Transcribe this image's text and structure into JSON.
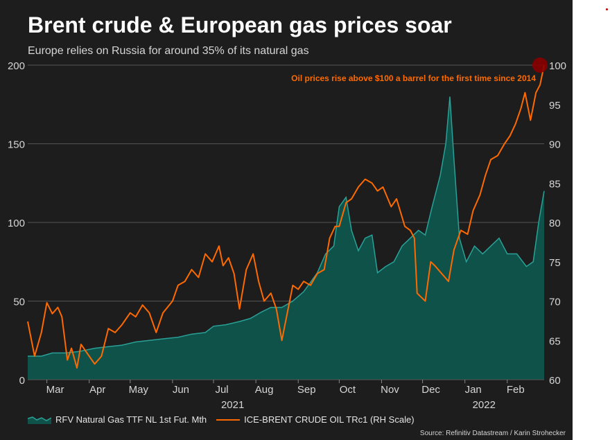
{
  "header": {
    "title": "Brent crude & European gas prices soar",
    "subtitle": "Europe relies on Russia for around 35% of its natural gas"
  },
  "legend": {
    "gas_label": "RFV Natural Gas TTF NL 1st Fut. Mth",
    "oil_label": "ICE-BRENT CRUDE OIL TRc1 (RH Scale)"
  },
  "source": "Source: Refinitiv Datastream / Karin Strohecker",
  "colors": {
    "background": "#1d1d1d",
    "gas_fill": "#0e5249",
    "gas_line": "#2aa198",
    "oil_line": "#ff6a00",
    "annotation": "#ff6a00",
    "marker": "#8b0000",
    "grid": "#555555",
    "text": "#d6d6d6"
  },
  "chart_data": {
    "type": "area",
    "annotation": "Oil prices rise above $100 a barrel for the first time since 2014",
    "left_axis": {
      "ylim": [
        0,
        200
      ],
      "ticks": [
        0,
        50,
        100,
        150,
        200
      ]
    },
    "right_axis": {
      "ylim": [
        60,
        100
      ],
      "ticks": [
        60,
        65,
        70,
        75,
        80,
        85,
        90,
        95,
        100
      ]
    },
    "x_range": [
      "2021-02-15",
      "2022-02-28"
    ],
    "grid": "horizontal",
    "legend_position": "bottom",
    "month_ticks": [
      {
        "date": "2021-03-01",
        "label": "Mar"
      },
      {
        "date": "2021-04-01",
        "label": "Apr"
      },
      {
        "date": "2021-05-01",
        "label": "May"
      },
      {
        "date": "2021-06-01",
        "label": "Jun"
      },
      {
        "date": "2021-07-01",
        "label": "Jul"
      },
      {
        "date": "2021-08-01",
        "label": "Aug"
      },
      {
        "date": "2021-09-01",
        "label": "Sep"
      },
      {
        "date": "2021-10-01",
        "label": "Oct"
      },
      {
        "date": "2021-11-01",
        "label": "Nov"
      },
      {
        "date": "2021-12-01",
        "label": "Dec"
      },
      {
        "date": "2022-01-01",
        "label": "Jan"
      },
      {
        "date": "2022-02-01",
        "label": "Feb"
      }
    ],
    "year_labels": [
      {
        "date": "2021-07-15",
        "label": "2021"
      },
      {
        "date": "2022-01-15",
        "label": "2022"
      }
    ],
    "marker_point": {
      "date": "2022-02-28",
      "value": 100
    },
    "series": [
      {
        "name": "RFV Natural Gas TTF NL 1st Fut. Mth",
        "axis": "left",
        "points": [
          [
            "2021-02-15",
            15
          ],
          [
            "2021-02-25",
            15
          ],
          [
            "2021-03-05",
            17
          ],
          [
            "2021-03-15",
            17
          ],
          [
            "2021-03-25",
            18
          ],
          [
            "2021-04-05",
            20
          ],
          [
            "2021-04-15",
            21
          ],
          [
            "2021-04-25",
            22
          ],
          [
            "2021-05-05",
            24
          ],
          [
            "2021-05-15",
            25
          ],
          [
            "2021-05-25",
            26
          ],
          [
            "2021-06-05",
            27
          ],
          [
            "2021-06-15",
            29
          ],
          [
            "2021-06-25",
            30
          ],
          [
            "2021-07-01",
            34
          ],
          [
            "2021-07-10",
            35
          ],
          [
            "2021-07-20",
            37
          ],
          [
            "2021-07-28",
            39
          ],
          [
            "2021-08-05",
            43
          ],
          [
            "2021-08-12",
            46
          ],
          [
            "2021-08-20",
            46
          ],
          [
            "2021-08-28",
            50
          ],
          [
            "2021-09-05",
            56
          ],
          [
            "2021-09-10",
            62
          ],
          [
            "2021-09-15",
            68
          ],
          [
            "2021-09-21",
            80
          ],
          [
            "2021-09-27",
            85
          ],
          [
            "2021-10-01",
            110
          ],
          [
            "2021-10-06",
            116
          ],
          [
            "2021-10-10",
            95
          ],
          [
            "2021-10-15",
            82
          ],
          [
            "2021-10-20",
            90
          ],
          [
            "2021-10-25",
            92
          ],
          [
            "2021-10-29",
            68
          ],
          [
            "2021-11-04",
            72
          ],
          [
            "2021-11-10",
            75
          ],
          [
            "2021-11-16",
            85
          ],
          [
            "2021-11-22",
            90
          ],
          [
            "2021-11-28",
            95
          ],
          [
            "2021-12-03",
            92
          ],
          [
            "2021-12-08",
            110
          ],
          [
            "2021-12-14",
            130
          ],
          [
            "2021-12-18",
            150
          ],
          [
            "2021-12-21",
            180
          ],
          [
            "2021-12-24",
            140
          ],
          [
            "2021-12-28",
            90
          ],
          [
            "2022-01-02",
            75
          ],
          [
            "2022-01-08",
            85
          ],
          [
            "2022-01-14",
            80
          ],
          [
            "2022-01-20",
            85
          ],
          [
            "2022-01-26",
            90
          ],
          [
            "2022-02-01",
            80
          ],
          [
            "2022-02-08",
            80
          ],
          [
            "2022-02-15",
            72
          ],
          [
            "2022-02-20",
            75
          ],
          [
            "2022-02-24",
            100
          ],
          [
            "2022-02-28",
            120
          ]
        ]
      },
      {
        "name": "ICE-BRENT CRUDE OIL TRc1 (RH Scale)",
        "axis": "right",
        "points": [
          [
            "2021-02-15",
            67.4
          ],
          [
            "2021-02-20",
            63.0
          ],
          [
            "2021-02-25",
            66.0
          ],
          [
            "2021-03-01",
            69.8
          ],
          [
            "2021-03-05",
            68.4
          ],
          [
            "2021-03-09",
            69.2
          ],
          [
            "2021-03-12",
            68.0
          ],
          [
            "2021-03-16",
            62.5
          ],
          [
            "2021-03-19",
            64.0
          ],
          [
            "2021-03-23",
            61.5
          ],
          [
            "2021-03-26",
            64.5
          ],
          [
            "2021-03-30",
            63.5
          ],
          [
            "2021-04-05",
            62.0
          ],
          [
            "2021-04-10",
            63.0
          ],
          [
            "2021-04-15",
            66.5
          ],
          [
            "2021-04-20",
            66.0
          ],
          [
            "2021-04-25",
            67.0
          ],
          [
            "2021-05-01",
            68.5
          ],
          [
            "2021-05-05",
            68.0
          ],
          [
            "2021-05-10",
            69.5
          ],
          [
            "2021-05-15",
            68.5
          ],
          [
            "2021-05-20",
            66.0
          ],
          [
            "2021-05-25",
            68.5
          ],
          [
            "2021-06-01",
            70.0
          ],
          [
            "2021-06-05",
            72.0
          ],
          [
            "2021-06-10",
            72.5
          ],
          [
            "2021-06-15",
            74.0
          ],
          [
            "2021-06-20",
            73.0
          ],
          [
            "2021-06-25",
            76.0
          ],
          [
            "2021-06-30",
            75.0
          ],
          [
            "2021-07-05",
            77.0
          ],
          [
            "2021-07-08",
            74.5
          ],
          [
            "2021-07-12",
            75.5
          ],
          [
            "2021-07-16",
            73.5
          ],
          [
            "2021-07-20",
            69.0
          ],
          [
            "2021-07-25",
            74.0
          ],
          [
            "2021-07-30",
            76.0
          ],
          [
            "2021-08-03",
            72.5
          ],
          [
            "2021-08-07",
            70.0
          ],
          [
            "2021-08-12",
            71.0
          ],
          [
            "2021-08-16",
            69.0
          ],
          [
            "2021-08-20",
            65.0
          ],
          [
            "2021-08-24",
            68.5
          ],
          [
            "2021-08-28",
            72.0
          ],
          [
            "2021-09-01",
            71.5
          ],
          [
            "2021-09-05",
            72.5
          ],
          [
            "2021-09-10",
            72.0
          ],
          [
            "2021-09-15",
            73.5
          ],
          [
            "2021-09-20",
            74.0
          ],
          [
            "2021-09-24",
            78.0
          ],
          [
            "2021-09-28",
            79.5
          ],
          [
            "2021-10-01",
            79.5
          ],
          [
            "2021-10-06",
            82.5
          ],
          [
            "2021-10-10",
            83.0
          ],
          [
            "2021-10-15",
            84.5
          ],
          [
            "2021-10-20",
            85.5
          ],
          [
            "2021-10-25",
            85.0
          ],
          [
            "2021-10-29",
            84.0
          ],
          [
            "2021-11-02",
            84.5
          ],
          [
            "2021-11-08",
            82.0
          ],
          [
            "2021-11-12",
            83.0
          ],
          [
            "2021-11-18",
            79.5
          ],
          [
            "2021-11-22",
            79.0
          ],
          [
            "2021-11-25",
            78.0
          ],
          [
            "2021-11-27",
            71.0
          ],
          [
            "2021-11-30",
            70.5
          ],
          [
            "2021-12-03",
            70.0
          ],
          [
            "2021-12-07",
            75.0
          ],
          [
            "2021-12-10",
            74.5
          ],
          [
            "2021-12-15",
            73.5
          ],
          [
            "2021-12-20",
            72.5
          ],
          [
            "2021-12-24",
            76.5
          ],
          [
            "2021-12-29",
            79.0
          ],
          [
            "2022-01-03",
            78.5
          ],
          [
            "2022-01-07",
            81.5
          ],
          [
            "2022-01-12",
            83.5
          ],
          [
            "2022-01-16",
            86.0
          ],
          [
            "2022-01-20",
            88.0
          ],
          [
            "2022-01-25",
            88.5
          ],
          [
            "2022-01-30",
            90.0
          ],
          [
            "2022-02-03",
            91.0
          ],
          [
            "2022-02-07",
            92.5
          ],
          [
            "2022-02-11",
            94.5
          ],
          [
            "2022-02-14",
            96.5
          ],
          [
            "2022-02-18",
            93.0
          ],
          [
            "2022-02-22",
            96.5
          ],
          [
            "2022-02-25",
            97.5
          ],
          [
            "2022-02-28",
            100.0
          ]
        ]
      }
    ]
  }
}
